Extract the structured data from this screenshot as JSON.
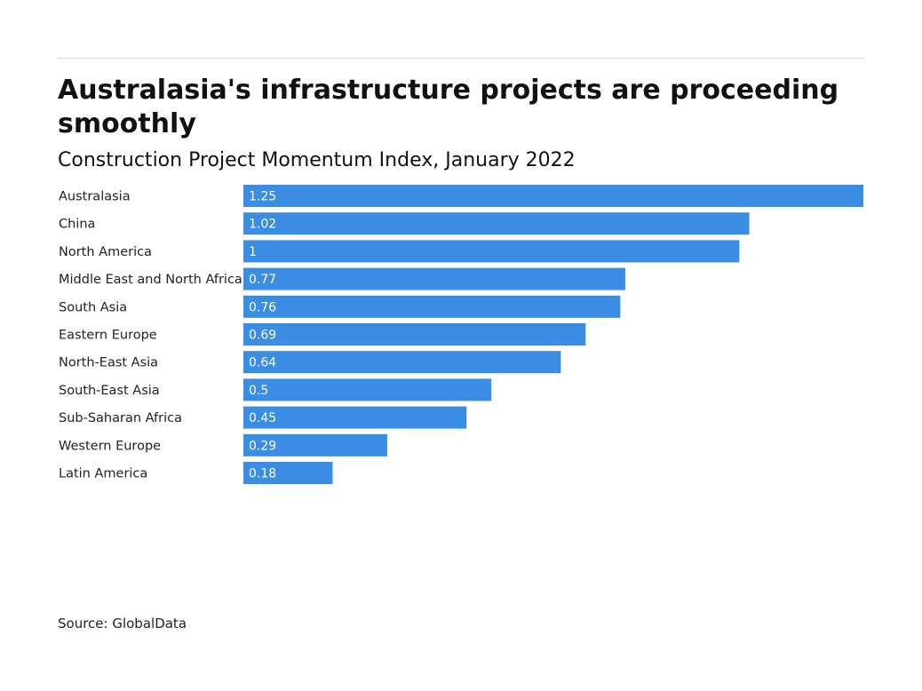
{
  "chart_data": {
    "type": "bar",
    "orientation": "horizontal",
    "title": "Australasia's infrastructure projects are proceeding smoothly",
    "subtitle": "Construction Project Momentum Index, January 2022",
    "categories": [
      "Australasia",
      "China",
      "North America",
      "Middle East and North Africa",
      "South Asia",
      "Eastern Europe",
      "North-East Asia",
      "South-East Asia",
      "Sub-Saharan Africa",
      "Western Europe",
      "Latin America"
    ],
    "values": [
      1.25,
      1.02,
      1,
      0.77,
      0.76,
      0.69,
      0.64,
      0.5,
      0.45,
      0.29,
      0.18
    ],
    "value_labels": [
      "1.25",
      "1.02",
      "1",
      "0.77",
      "0.76",
      "0.69",
      "0.64",
      "0.5",
      "0.45",
      "0.29",
      "0.18"
    ],
    "xlim": [
      0,
      1.25
    ],
    "grid": false,
    "legend": "none",
    "bar_color": "#3a8de3",
    "source": "Source: GlobalData"
  }
}
